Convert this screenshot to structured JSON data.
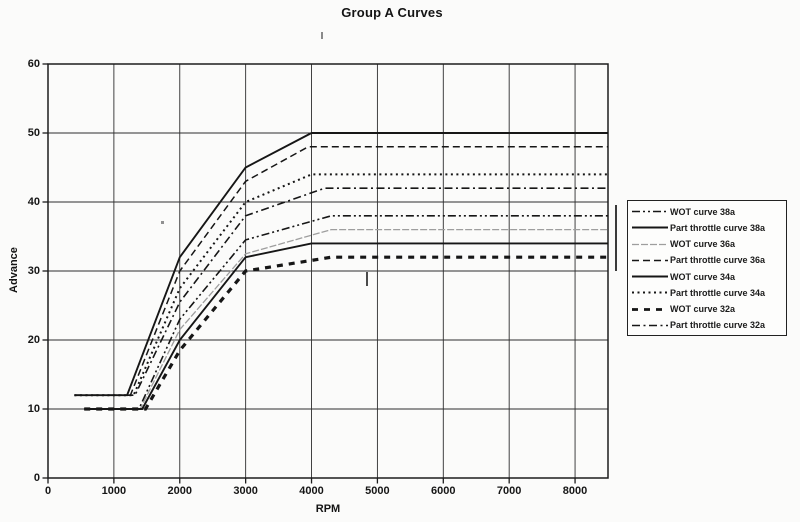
{
  "chart_data": {
    "type": "line",
    "title": "Group A Curves",
    "xlabel": "RPM",
    "ylabel": "Advance",
    "xlim": [
      0,
      8500
    ],
    "ylim": [
      0,
      60
    ],
    "x_ticks": [
      0,
      1000,
      2000,
      3000,
      4000,
      5000,
      6000,
      7000,
      8000
    ],
    "y_ticks": [
      0,
      10,
      20,
      30,
      40,
      50,
      60
    ],
    "grid": true,
    "grid_color": "#2e2e2e",
    "frame_color": "#1c1c1c",
    "legend_position": "right",
    "series": [
      {
        "name": "WOT curve 38a",
        "line_style": "dash-dot-dot",
        "color": "#161616",
        "points": [
          [
            550,
            10
          ],
          [
            1380,
            10
          ],
          [
            2000,
            23
          ],
          [
            3000,
            34.5
          ],
          [
            4300,
            38
          ],
          [
            8500,
            38
          ]
        ]
      },
      {
        "name": "Part throttle curve 38a",
        "line_style": "solid",
        "color": "#161616",
        "points": [
          [
            400,
            12
          ],
          [
            1200,
            12
          ],
          [
            2000,
            32
          ],
          [
            3000,
            45
          ],
          [
            4000,
            50
          ],
          [
            8500,
            50
          ]
        ]
      },
      {
        "name": "WOT curve 36a",
        "line_style": "faint-dashed",
        "color": "#9e9e9e",
        "points": [
          [
            550,
            10
          ],
          [
            1400,
            10
          ],
          [
            2000,
            21.5
          ],
          [
            3000,
            32.5
          ],
          [
            4300,
            36
          ],
          [
            8500,
            36
          ]
        ]
      },
      {
        "name": "Part throttle curve 36a",
        "line_style": "dashed",
        "color": "#161616",
        "points": [
          [
            400,
            12
          ],
          [
            1250,
            12
          ],
          [
            2000,
            30
          ],
          [
            3000,
            43
          ],
          [
            3950,
            48
          ],
          [
            8500,
            48
          ]
        ]
      },
      {
        "name": "WOT curve 34a",
        "line_style": "solid",
        "color": "#161616",
        "points": [
          [
            550,
            10
          ],
          [
            1430,
            10
          ],
          [
            2000,
            20
          ],
          [
            3000,
            32
          ],
          [
            4000,
            34
          ],
          [
            8500,
            34
          ]
        ]
      },
      {
        "name": "Part throttle curve 34a",
        "line_style": "dotted",
        "color": "#161616",
        "points": [
          [
            400,
            12
          ],
          [
            1300,
            12
          ],
          [
            2000,
            27.5
          ],
          [
            3000,
            40
          ],
          [
            4000,
            44
          ],
          [
            8500,
            44
          ]
        ]
      },
      {
        "name": "WOT curve 32a",
        "line_style": "bold-dashed",
        "color": "#161616",
        "points": [
          [
            550,
            10
          ],
          [
            1480,
            10
          ],
          [
            2000,
            18.5
          ],
          [
            3000,
            30
          ],
          [
            4300,
            32
          ],
          [
            8500,
            32
          ]
        ]
      },
      {
        "name": "Part throttle curve 32a",
        "line_style": "dash-dot",
        "color": "#161616",
        "points": [
          [
            400,
            12
          ],
          [
            1320,
            12
          ],
          [
            2000,
            25.5
          ],
          [
            3000,
            38
          ],
          [
            4200,
            42
          ],
          [
            8500,
            42
          ]
        ]
      }
    ]
  }
}
